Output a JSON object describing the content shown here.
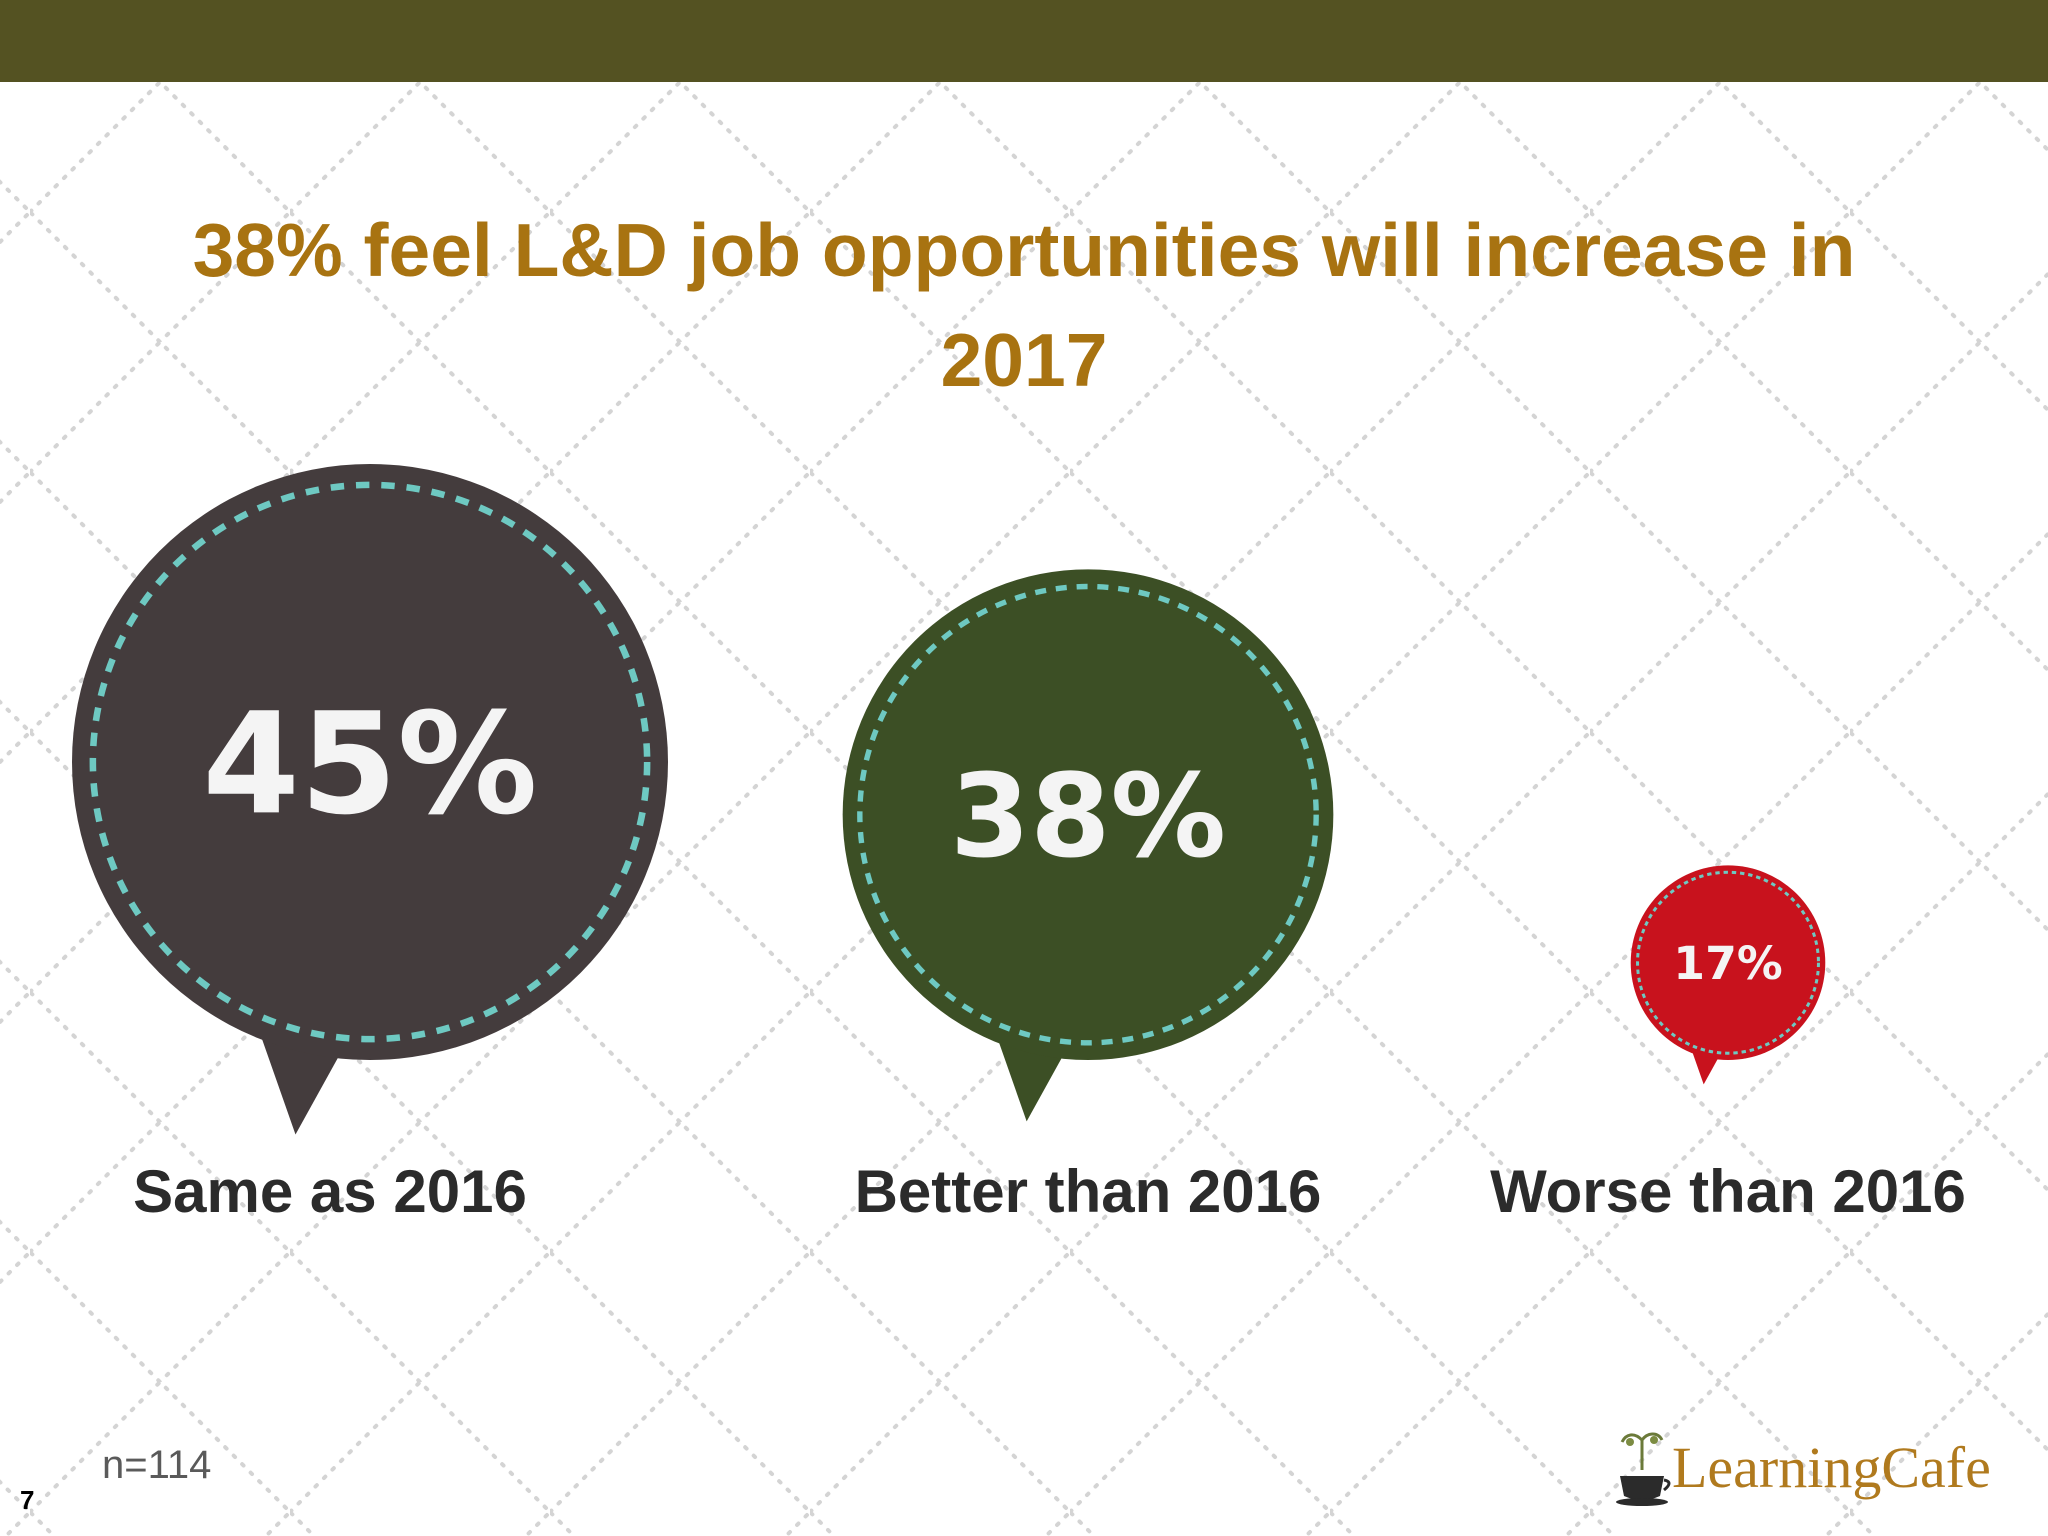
{
  "slide": {
    "title": "38% feel L&D job opportunities will increase in 2017",
    "sample_size": "n=114",
    "page_number": "7",
    "logo_text": "LearningCafe"
  },
  "colors": {
    "top_bar": "#545222",
    "title": "#a87311",
    "dash": "#6ec9c2"
  },
  "chart_data": {
    "type": "bubble",
    "title": "38% feel L&D job opportunities will increase in 2017",
    "categories": [
      "Same as 2016",
      "Better than 2016",
      "Worse than 2016"
    ],
    "values": [
      45,
      38,
      17
    ],
    "labels": [
      "45%",
      "38%",
      "17%"
    ],
    "colors": [
      "#443c3d",
      "#3c4f25",
      "#c8121d"
    ],
    "unit": "%"
  }
}
